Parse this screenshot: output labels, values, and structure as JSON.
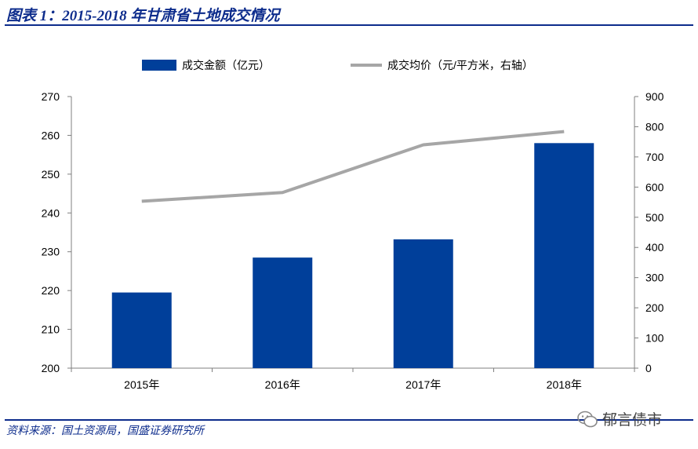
{
  "header": {
    "title": "图表 1：2015-2018 年甘肃省土地成交情况"
  },
  "footer": {
    "source": "资料来源：国土资源局，国盛证券研究所",
    "watermark": "郁言债市",
    "watermark_icon": "wechat-icon"
  },
  "colors": {
    "bar": "#003f9a",
    "line": "#a6a6a6",
    "brand": "#0d2c8c"
  },
  "chart_data": {
    "type": "bar",
    "categories": [
      "2015年",
      "2016年",
      "2017年",
      "2018年"
    ],
    "series": [
      {
        "name": "成交金额（亿元）",
        "type": "bar",
        "axis": "left",
        "values": [
          219.5,
          228.5,
          233.2,
          258
        ]
      },
      {
        "name": "成交均价（元/平方米，右轴）",
        "type": "line",
        "axis": "right",
        "values": [
          553,
          582,
          740,
          784
        ]
      }
    ],
    "y_left": {
      "min": 200,
      "max": 270,
      "ticks": [
        "200",
        "210",
        "220",
        "230",
        "240",
        "250",
        "260",
        "270"
      ]
    },
    "y_right": {
      "min": 0,
      "max": 900,
      "ticks": [
        "0",
        "100",
        "200",
        "300",
        "400",
        "500",
        "600",
        "700",
        "800",
        "900"
      ]
    },
    "grid": false,
    "legend_position": "top"
  }
}
